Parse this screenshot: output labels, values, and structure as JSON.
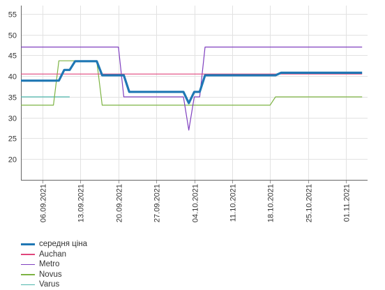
{
  "chart_data": {
    "type": "line",
    "title": "",
    "xlabel": "",
    "ylabel": "",
    "x_range": [
      "2021-09-02",
      "2021-11-05"
    ],
    "ylim": [
      15,
      57
    ],
    "y_ticks": [
      20,
      25,
      30,
      35,
      40,
      45,
      50,
      55
    ],
    "x_ticks": [
      "06.09.2021",
      "13.09.2021",
      "20.09.2021",
      "27.09.2021",
      "04.10.2021",
      "11.10.2021",
      "18.10.2021",
      "25.10.2021",
      "01.11.2021"
    ],
    "grid": true,
    "legend_position": "bottom-left",
    "series": [
      {
        "name": "середня ціна",
        "color": "#1f77b4",
        "points": [
          [
            "2021-09-02",
            38.9
          ],
          [
            "2021-09-09",
            38.9
          ],
          [
            "2021-09-10",
            41.5
          ],
          [
            "2021-09-11",
            41.5
          ],
          [
            "2021-09-12",
            43.6
          ],
          [
            "2021-09-16",
            43.6
          ],
          [
            "2021-09-17",
            40.2
          ],
          [
            "2021-09-21",
            40.2
          ],
          [
            "2021-09-22",
            36.2
          ],
          [
            "2021-10-02",
            36.2
          ],
          [
            "2021-10-03",
            33.5
          ],
          [
            "2021-10-04",
            36.2
          ],
          [
            "2021-10-05",
            36.2
          ],
          [
            "2021-10-06",
            40.2
          ],
          [
            "2021-10-19",
            40.2
          ],
          [
            "2021-10-20",
            40.8
          ],
          [
            "2021-11-04",
            40.8
          ]
        ]
      },
      {
        "name": "Auchan",
        "color": "#e0457b",
        "points": [
          [
            "2021-09-02",
            40.5
          ],
          [
            "2021-11-04",
            40.5
          ]
        ]
      },
      {
        "name": "Metro",
        "color": "#7f3fbf",
        "points": [
          [
            "2021-09-02",
            47.0
          ],
          [
            "2021-09-20",
            47.0
          ],
          [
            "2021-09-21",
            35.0
          ],
          [
            "2021-10-02",
            35.0
          ],
          [
            "2021-10-03",
            27.0
          ],
          [
            "2021-10-04",
            35.0
          ],
          [
            "2021-10-05",
            35.0
          ],
          [
            "2021-10-06",
            47.0
          ],
          [
            "2021-11-04",
            47.0
          ]
        ]
      },
      {
        "name": "Novus",
        "color": "#7cb342",
        "points": [
          [
            "2021-09-02",
            33.0
          ],
          [
            "2021-09-08",
            33.0
          ],
          [
            "2021-09-09",
            43.7
          ],
          [
            "2021-09-16",
            43.7
          ],
          [
            "2021-09-17",
            33.0
          ],
          [
            "2021-10-18",
            33.0
          ],
          [
            "2021-10-19",
            35.0
          ],
          [
            "2021-11-04",
            35.0
          ]
        ]
      },
      {
        "name": "Varus",
        "color": "#4db6ac",
        "points": [
          [
            "2021-09-02",
            35.0
          ],
          [
            "2021-09-11",
            35.0
          ]
        ]
      }
    ]
  }
}
